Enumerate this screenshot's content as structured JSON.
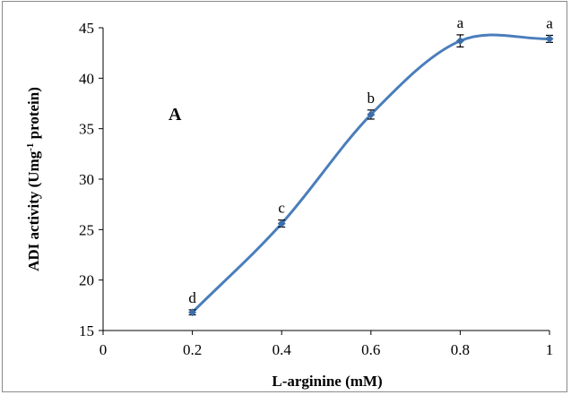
{
  "chart_data": {
    "type": "line",
    "panel_label": "A",
    "xlabel": "L-arginine (mM)",
    "ylabel_main": "ADI activity (Umg",
    "ylabel_sup": "-1",
    "ylabel_tail": " protein)",
    "xlim": [
      0,
      1
    ],
    "ylim": [
      15,
      45
    ],
    "x_ticks": [
      "0",
      "0.2",
      "0.4",
      "0.6",
      "0.8",
      "1"
    ],
    "y_ticks": [
      "15",
      "20",
      "25",
      "30",
      "35",
      "40",
      "45"
    ],
    "grid": false,
    "smooth": true,
    "line_color": "#4a7ebb",
    "marker_color": "#3d6ea8",
    "points": [
      {
        "x": 0.2,
        "y": 16.8,
        "err": 0.25,
        "label": "d"
      },
      {
        "x": 0.4,
        "y": 25.6,
        "err": 0.35,
        "label": "c"
      },
      {
        "x": 0.6,
        "y": 36.4,
        "err": 0.45,
        "label": "b"
      },
      {
        "x": 0.8,
        "y": 43.7,
        "err": 0.6,
        "label": "a"
      },
      {
        "x": 1.0,
        "y": 43.9,
        "err": 0.35,
        "label": "a"
      }
    ]
  }
}
